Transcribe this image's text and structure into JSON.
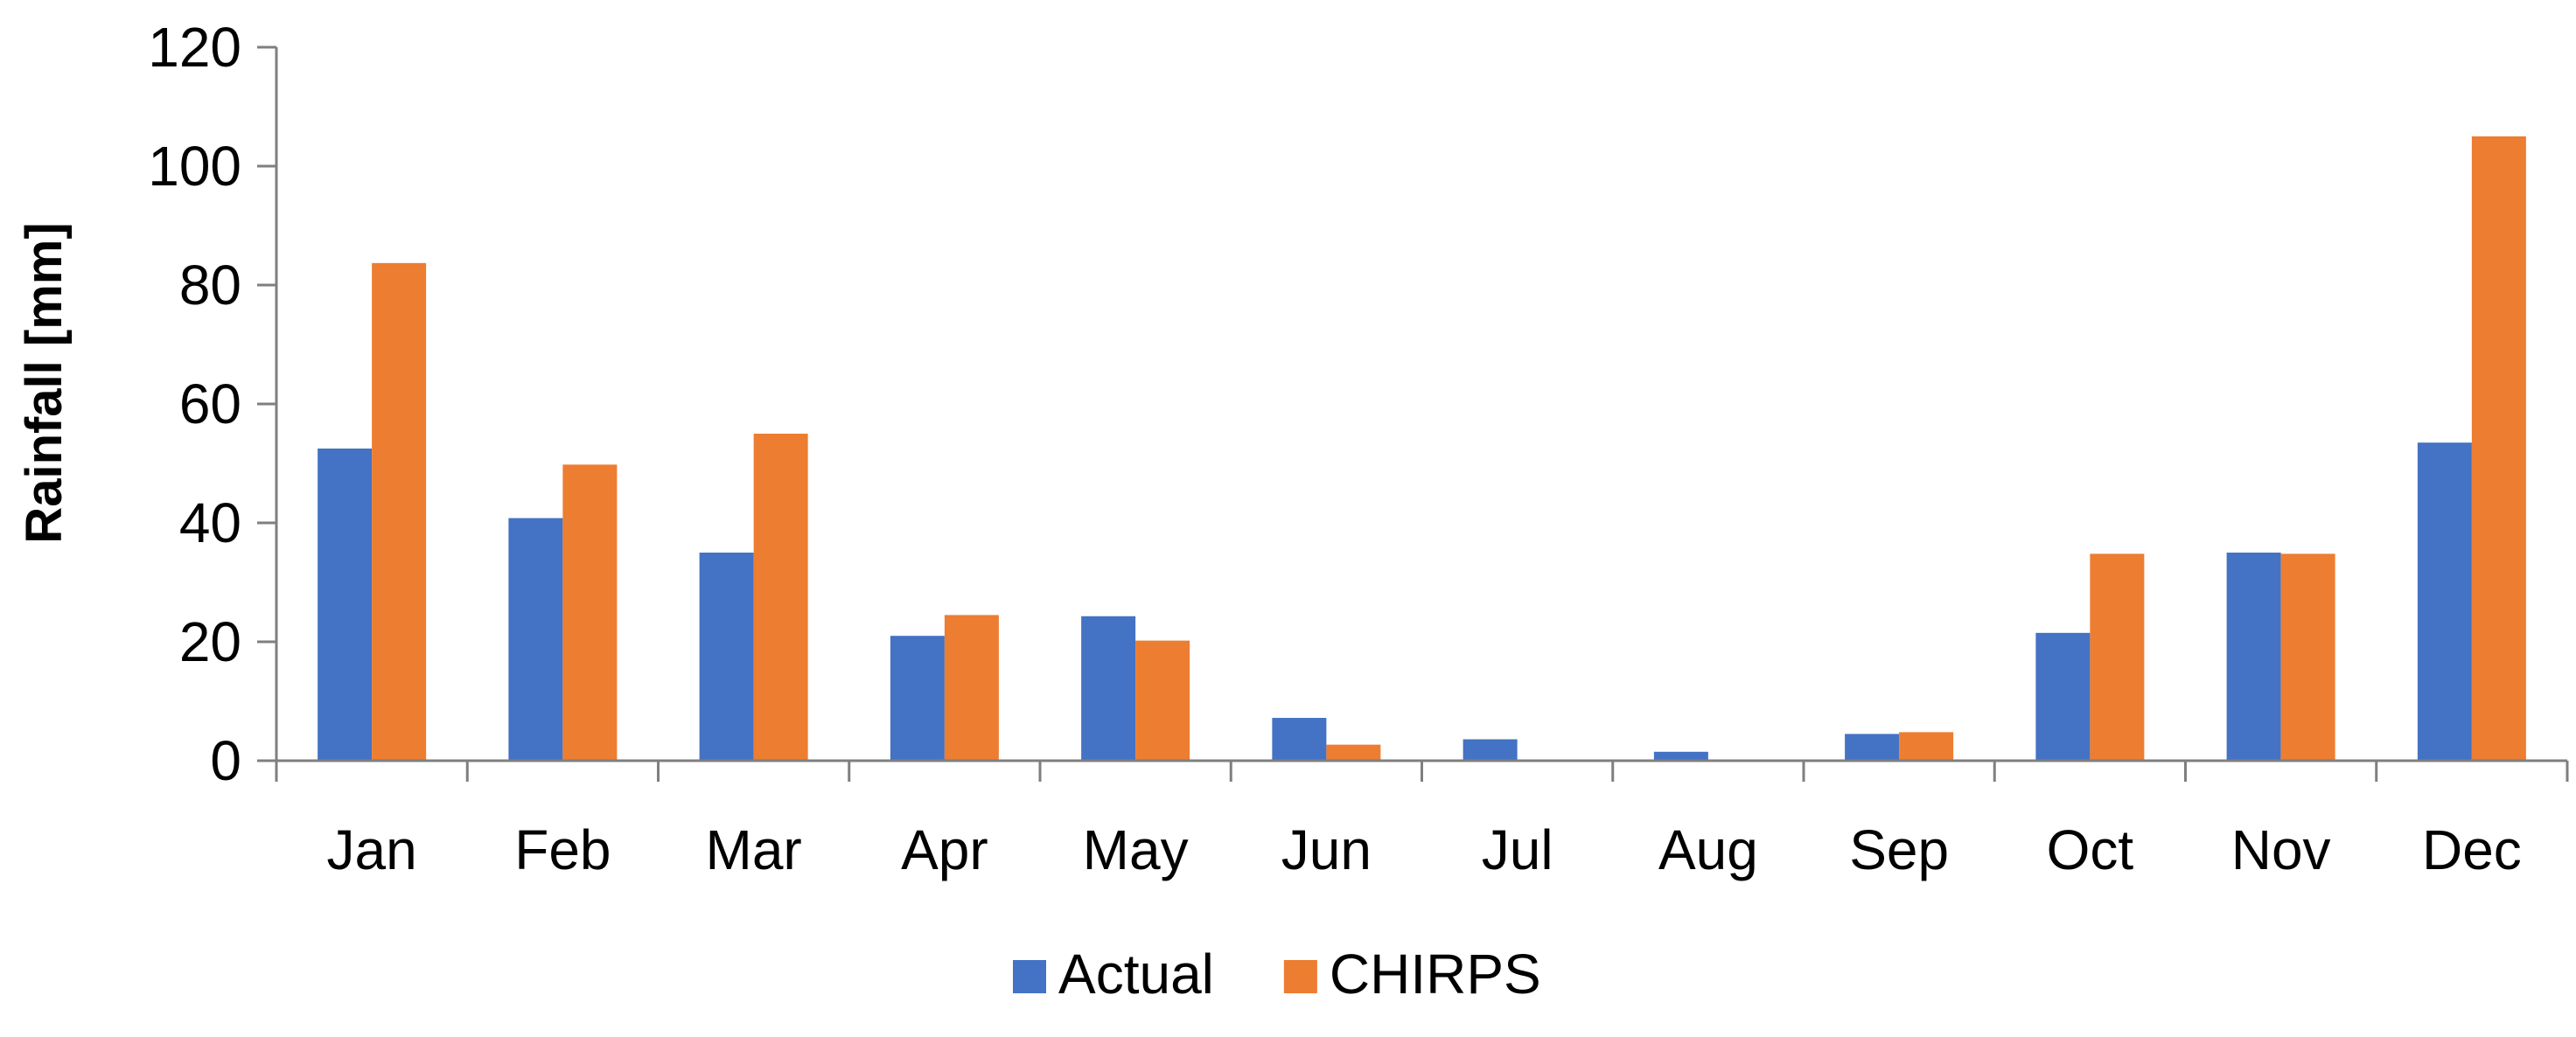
{
  "chart_data": {
    "type": "bar",
    "title": "",
    "xlabel": "",
    "ylabel": "Rainfall [mm]",
    "ylim": [
      0,
      120
    ],
    "yticks": [
      0,
      20,
      40,
      60,
      80,
      100,
      120
    ],
    "grid": false,
    "legend_position": "bottom",
    "categories": [
      "Jan",
      "Feb",
      "Mar",
      "Apr",
      "May",
      "Jun",
      "Jul",
      "Aug",
      "Sep",
      "Oct",
      "Nov",
      "Dec"
    ],
    "series": [
      {
        "name": "Actual",
        "color": "#4472C4",
        "values": [
          52.5,
          40.8,
          35.0,
          21.0,
          24.3,
          7.2,
          3.6,
          1.5,
          4.5,
          21.5,
          35.0,
          53.5
        ]
      },
      {
        "name": "CHIRPS",
        "color": "#ED7D31",
        "values": [
          83.7,
          49.8,
          55.0,
          24.5,
          20.2,
          2.7,
          0,
          0,
          4.8,
          34.8,
          34.8,
          105.0
        ]
      }
    ]
  }
}
